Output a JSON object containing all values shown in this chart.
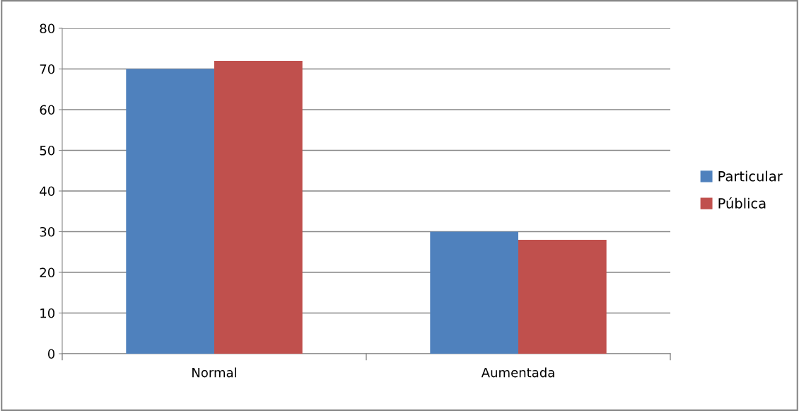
{
  "chart_data": {
    "type": "bar",
    "categories": [
      "Normal",
      "Aumentada"
    ],
    "series": [
      {
        "name": "Particular",
        "color": "#4f81bd",
        "values": [
          70,
          30
        ]
      },
      {
        "name": "Pública",
        "color": "#c0504d",
        "values": [
          72,
          28
        ]
      }
    ],
    "ylim": [
      0,
      80
    ],
    "yticks": [
      0,
      10,
      20,
      30,
      40,
      50,
      60,
      70,
      80
    ],
    "grid": "y",
    "legend": "right"
  }
}
